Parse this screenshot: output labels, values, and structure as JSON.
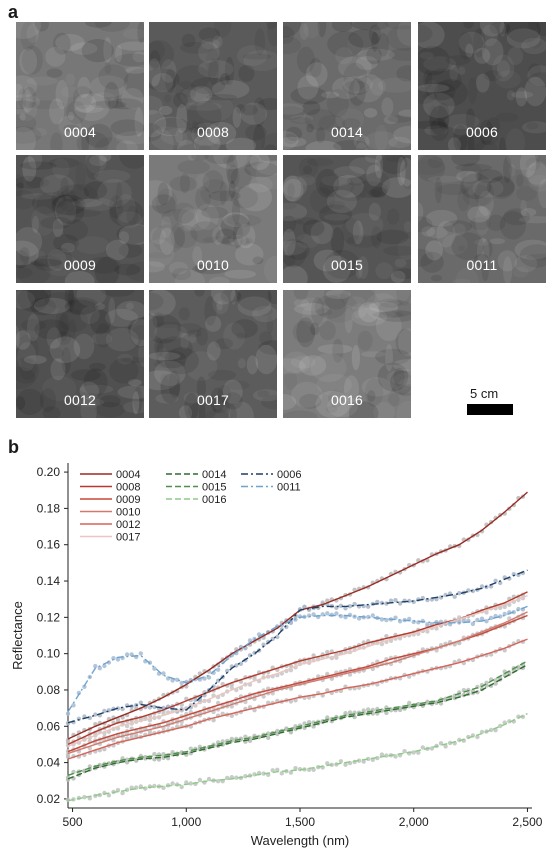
{
  "panel_a": {
    "letter": "a",
    "tiles": [
      {
        "label": "0004",
        "tone": "#777777"
      },
      {
        "label": "0008",
        "tone": "#5a5a5a"
      },
      {
        "label": "0014",
        "tone": "#6b6b6b"
      },
      {
        "label": "0006",
        "tone": "#4d4d4d"
      },
      {
        "label": "0009",
        "tone": "#545454"
      },
      {
        "label": "0010",
        "tone": "#7a7a7a"
      },
      {
        "label": "0015",
        "tone": "#555555"
      },
      {
        "label": "0011",
        "tone": "#6a6a6a"
      },
      {
        "label": "0012",
        "tone": "#505050"
      },
      {
        "label": "0017",
        "tone": "#5c5c5c"
      },
      {
        "label": "0016",
        "tone": "#7c7c7c"
      }
    ],
    "scale_bar_label": "5 cm"
  },
  "panel_b": {
    "letter": "b"
  },
  "chart_data": {
    "type": "line",
    "xlabel": "Wavelength (nm)",
    "ylabel": "Reflectance",
    "xlim": [
      480,
      2520
    ],
    "ylim": [
      0.015,
      0.205
    ],
    "xticks": [
      500,
      1000,
      1500,
      2000,
      2500
    ],
    "xtick_labels": [
      "500",
      "1,000",
      "1,500",
      "2,000",
      "2,500"
    ],
    "yticks": [
      0.02,
      0.04,
      0.06,
      0.08,
      0.1,
      0.12,
      0.14,
      0.16,
      0.18,
      0.2
    ],
    "ytick_labels": [
      "0.02",
      "0.04",
      "0.06",
      "0.08",
      "0.10",
      "0.12",
      "0.14",
      "0.16",
      "0.18",
      "0.20"
    ],
    "legend_position": "top-left",
    "series": [
      {
        "name": "0004",
        "color": "#9b2a22",
        "dash": "solid",
        "marker_color": "#b8b8b8",
        "x": [
          480,
          600,
          700,
          800,
          900,
          1000,
          1100,
          1200,
          1300,
          1400,
          1500,
          1600,
          1700,
          1800,
          1900,
          2000,
          2100,
          2200,
          2300,
          2400,
          2500
        ],
        "y": [
          0.053,
          0.06,
          0.065,
          0.07,
          0.076,
          0.083,
          0.091,
          0.1,
          0.107,
          0.114,
          0.124,
          0.127,
          0.132,
          0.137,
          0.143,
          0.149,
          0.155,
          0.16,
          0.168,
          0.178,
          0.189
        ]
      },
      {
        "name": "0008",
        "color": "#b53a2d",
        "dash": "solid",
        "marker_color": "#bdbdbd",
        "x": [
          480,
          600,
          700,
          800,
          900,
          1000,
          1100,
          1200,
          1300,
          1400,
          1500,
          1600,
          1700,
          1800,
          1900,
          2000,
          2100,
          2200,
          2300,
          2400,
          2500
        ],
        "y": [
          0.05,
          0.057,
          0.062,
          0.065,
          0.069,
          0.074,
          0.079,
          0.084,
          0.088,
          0.092,
          0.096,
          0.099,
          0.102,
          0.106,
          0.109,
          0.112,
          0.116,
          0.119,
          0.124,
          0.128,
          0.134
        ]
      },
      {
        "name": "0009",
        "color": "#c8483a",
        "dash": "solid",
        "marker_color": "#c2c2c2",
        "x": [
          480,
          600,
          700,
          800,
          900,
          1000,
          1100,
          1200,
          1300,
          1400,
          1500,
          1600,
          1700,
          1800,
          1900,
          2000,
          2100,
          2200,
          2300,
          2400,
          2500
        ],
        "y": [
          0.046,
          0.052,
          0.056,
          0.059,
          0.062,
          0.066,
          0.07,
          0.074,
          0.078,
          0.081,
          0.084,
          0.087,
          0.09,
          0.093,
          0.097,
          0.1,
          0.103,
          0.107,
          0.111,
          0.116,
          0.121
        ]
      },
      {
        "name": "0010",
        "color": "#d27a70",
        "dash": "solid",
        "marker_color": "#c4c4c4",
        "x": [
          480,
          600,
          700,
          800,
          900,
          1000,
          1100,
          1200,
          1300,
          1400,
          1500,
          1600,
          1700,
          1800,
          1900,
          2000,
          2100,
          2200,
          2300,
          2400,
          2500
        ],
        "y": [
          0.045,
          0.05,
          0.054,
          0.057,
          0.06,
          0.064,
          0.068,
          0.072,
          0.076,
          0.08,
          0.083,
          0.086,
          0.089,
          0.092,
          0.095,
          0.099,
          0.103,
          0.107,
          0.112,
          0.117,
          0.123
        ]
      },
      {
        "name": "0012",
        "color": "#d66458",
        "dash": "solid",
        "marker_color": "#c0c0c0",
        "x": [
          480,
          600,
          700,
          800,
          900,
          1000,
          1100,
          1200,
          1300,
          1400,
          1500,
          1600,
          1700,
          1800,
          1900,
          2000,
          2100,
          2200,
          2300,
          2400,
          2500
        ],
        "y": [
          0.042,
          0.047,
          0.051,
          0.054,
          0.057,
          0.06,
          0.064,
          0.067,
          0.07,
          0.073,
          0.076,
          0.078,
          0.081,
          0.083,
          0.086,
          0.089,
          0.092,
          0.095,
          0.099,
          0.103,
          0.108
        ]
      },
      {
        "name": "0017",
        "color": "#ecc6c0",
        "dash": "solid",
        "marker_color": "#c6c6c6",
        "x": [
          480,
          600,
          700,
          800,
          900,
          1000,
          1100,
          1200,
          1300,
          1400,
          1500,
          1600,
          1700,
          1800,
          1900,
          2000,
          2100,
          2200,
          2300,
          2400,
          2500
        ],
        "y": [
          0.049,
          0.055,
          0.06,
          0.063,
          0.066,
          0.07,
          0.075,
          0.08,
          0.085,
          0.089,
          0.094,
          0.097,
          0.1,
          0.104,
          0.108,
          0.111,
          0.115,
          0.119,
          0.123,
          0.127,
          0.132
        ]
      },
      {
        "name": "0014",
        "color": "#2e6b2e",
        "dash": "dashed",
        "marker_color": "#b4bcb4",
        "x": [
          480,
          600,
          700,
          800,
          900,
          1000,
          1100,
          1200,
          1300,
          1400,
          1500,
          1600,
          1700,
          1800,
          1900,
          2000,
          2100,
          2200,
          2300,
          2400,
          2500
        ],
        "y": [
          0.031,
          0.037,
          0.04,
          0.042,
          0.043,
          0.045,
          0.048,
          0.051,
          0.053,
          0.056,
          0.059,
          0.062,
          0.065,
          0.067,
          0.069,
          0.071,
          0.073,
          0.076,
          0.08,
          0.087,
          0.094
        ]
      },
      {
        "name": "0015",
        "color": "#4f8f4a",
        "dash": "dashed",
        "marker_color": "#b8c0b8",
        "x": [
          480,
          600,
          700,
          800,
          900,
          1000,
          1100,
          1200,
          1300,
          1400,
          1500,
          1600,
          1700,
          1800,
          1900,
          2000,
          2100,
          2200,
          2300,
          2400,
          2500
        ],
        "y": [
          0.033,
          0.038,
          0.041,
          0.043,
          0.044,
          0.046,
          0.049,
          0.052,
          0.054,
          0.057,
          0.06,
          0.063,
          0.066,
          0.068,
          0.07,
          0.072,
          0.074,
          0.078,
          0.082,
          0.089,
          0.096
        ]
      },
      {
        "name": "0016",
        "color": "#8fc98a",
        "dash": "dashed",
        "marker_color": "#bcc4bc",
        "x": [
          480,
          600,
          700,
          800,
          900,
          1000,
          1100,
          1200,
          1300,
          1400,
          1500,
          1600,
          1700,
          1800,
          1900,
          2000,
          2100,
          2200,
          2300,
          2400,
          2500
        ],
        "y": [
          0.019,
          0.022,
          0.024,
          0.026,
          0.027,
          0.028,
          0.03,
          0.031,
          0.033,
          0.035,
          0.036,
          0.038,
          0.04,
          0.042,
          0.044,
          0.046,
          0.049,
          0.052,
          0.056,
          0.061,
          0.067
        ]
      },
      {
        "name": "0006",
        "color": "#1f3f66",
        "dash": "dashdot",
        "marker_color": "#a9b6c8",
        "x": [
          480,
          600,
          700,
          800,
          900,
          1000,
          1100,
          1200,
          1300,
          1400,
          1500,
          1600,
          1700,
          1800,
          1900,
          2000,
          2100,
          2200,
          2300,
          2400,
          2500
        ],
        "y": [
          0.062,
          0.066,
          0.07,
          0.072,
          0.07,
          0.069,
          0.08,
          0.092,
          0.1,
          0.11,
          0.124,
          0.126,
          0.126,
          0.127,
          0.128,
          0.129,
          0.131,
          0.133,
          0.136,
          0.141,
          0.146
        ]
      },
      {
        "name": "0011",
        "color": "#6fa3cf",
        "dash": "dashdot",
        "marker_color": "#a6bcd2",
        "x": [
          480,
          600,
          700,
          800,
          900,
          1000,
          1100,
          1200,
          1300,
          1400,
          1500,
          1600,
          1700,
          1800,
          1900,
          2000,
          2100,
          2200,
          2300,
          2400,
          2500
        ],
        "y": [
          0.068,
          0.092,
          0.098,
          0.099,
          0.088,
          0.084,
          0.088,
          0.099,
          0.108,
          0.115,
          0.12,
          0.121,
          0.121,
          0.12,
          0.119,
          0.118,
          0.117,
          0.117,
          0.118,
          0.121,
          0.126
        ]
      }
    ]
  }
}
